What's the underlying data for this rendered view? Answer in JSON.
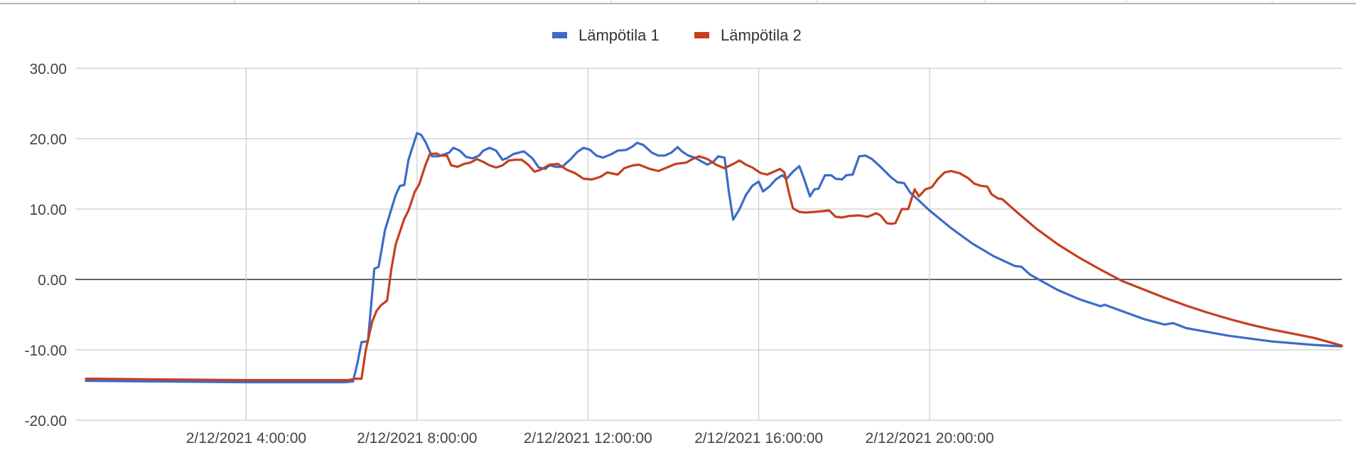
{
  "chart_data": {
    "type": "line",
    "title": "",
    "xlabel": "",
    "ylabel": "",
    "ylim": [
      -20,
      30
    ],
    "y_ticks": [
      "30.00",
      "20.00",
      "10.00",
      "0.00",
      "-10.00",
      "-20.00"
    ],
    "y_tick_values": [
      30,
      20,
      10,
      0,
      -10,
      -20
    ],
    "x_range_hours": [
      0.25,
      23.5
    ],
    "x_ticks": [
      "2/12/2021 4:00:00",
      "2/12/2021 8:00:00",
      "2/12/2021 12:00:00",
      "2/12/2021 16:00:00",
      "2/12/2021 20:00:00"
    ],
    "x_tick_hours": [
      4,
      8,
      12,
      16,
      20
    ],
    "grid": true,
    "legend_position": "top",
    "series": [
      {
        "name": "Lämpötila 1",
        "color": "#3c6bc9",
        "points": [
          [
            0.25,
            -14.4
          ],
          [
            2,
            -14.5
          ],
          [
            4,
            -14.6
          ],
          [
            6.3,
            -14.6
          ],
          [
            6.5,
            -14.5
          ],
          [
            6.6,
            -12
          ],
          [
            6.7,
            -8.9
          ],
          [
            6.85,
            -8.8
          ],
          [
            6.95,
            -2
          ],
          [
            7.0,
            1.5
          ],
          [
            7.1,
            1.8
          ],
          [
            7.25,
            7
          ],
          [
            7.4,
            10
          ],
          [
            7.5,
            12
          ],
          [
            7.6,
            13.3
          ],
          [
            7.7,
            13.4
          ],
          [
            7.8,
            17
          ],
          [
            8.0,
            20.8
          ],
          [
            8.1,
            20.5
          ],
          [
            8.2,
            19.5
          ],
          [
            8.35,
            17.5
          ],
          [
            8.5,
            17.5
          ],
          [
            8.75,
            18
          ],
          [
            8.85,
            18.7
          ],
          [
            9.0,
            18.3
          ],
          [
            9.15,
            17.4
          ],
          [
            9.3,
            17.2
          ],
          [
            9.45,
            17.6
          ],
          [
            9.55,
            18.3
          ],
          [
            9.7,
            18.7
          ],
          [
            9.85,
            18.3
          ],
          [
            10.0,
            17
          ],
          [
            10.1,
            17.2
          ],
          [
            10.25,
            17.8
          ],
          [
            10.5,
            18.2
          ],
          [
            10.7,
            17.2
          ],
          [
            10.85,
            15.9
          ],
          [
            11.0,
            15.7
          ],
          [
            11.1,
            16.2
          ],
          [
            11.25,
            16
          ],
          [
            11.4,
            16
          ],
          [
            11.6,
            17.1
          ],
          [
            11.75,
            18.1
          ],
          [
            11.9,
            18.7
          ],
          [
            12.05,
            18.4
          ],
          [
            12.2,
            17.6
          ],
          [
            12.35,
            17.3
          ],
          [
            12.55,
            17.8
          ],
          [
            12.7,
            18.3
          ],
          [
            12.9,
            18.4
          ],
          [
            13.05,
            18.9
          ],
          [
            13.15,
            19.4
          ],
          [
            13.3,
            19.1
          ],
          [
            13.5,
            18
          ],
          [
            13.65,
            17.6
          ],
          [
            13.8,
            17.6
          ],
          [
            13.95,
            18
          ],
          [
            14.1,
            18.8
          ],
          [
            14.2,
            18.2
          ],
          [
            14.35,
            17.6
          ],
          [
            14.5,
            17.3
          ],
          [
            14.65,
            16.8
          ],
          [
            14.8,
            16.3
          ],
          [
            14.95,
            16.8
          ],
          [
            15.05,
            17.5
          ],
          [
            15.2,
            17.3
          ],
          [
            15.3,
            12.5
          ],
          [
            15.4,
            8.5
          ],
          [
            15.55,
            10
          ],
          [
            15.7,
            12
          ],
          [
            15.85,
            13.3
          ],
          [
            16.0,
            13.9
          ],
          [
            16.1,
            12.5
          ],
          [
            16.25,
            13.2
          ],
          [
            16.4,
            14.2
          ],
          [
            16.55,
            14.8
          ],
          [
            16.65,
            14.3
          ],
          [
            16.8,
            15.3
          ],
          [
            16.95,
            16.1
          ],
          [
            17.05,
            14.5
          ],
          [
            17.2,
            11.8
          ],
          [
            17.3,
            12.8
          ],
          [
            17.4,
            12.9
          ],
          [
            17.55,
            14.8
          ],
          [
            17.7,
            14.8
          ],
          [
            17.8,
            14.3
          ],
          [
            17.95,
            14.2
          ],
          [
            18.05,
            14.8
          ],
          [
            18.2,
            14.9
          ],
          [
            18.35,
            17.5
          ],
          [
            18.5,
            17.6
          ],
          [
            18.65,
            17.1
          ],
          [
            18.85,
            16
          ],
          [
            19.1,
            14.5
          ],
          [
            19.25,
            13.8
          ],
          [
            19.4,
            13.7
          ],
          [
            19.55,
            12.3
          ],
          [
            19.75,
            11.2
          ],
          [
            20.0,
            9.8
          ],
          [
            20.5,
            7.3
          ],
          [
            21.0,
            5.1
          ],
          [
            21.5,
            3.3
          ],
          [
            22.0,
            1.9
          ],
          [
            22.15,
            1.8
          ],
          [
            22.35,
            0.7
          ],
          [
            22.7,
            -0.5
          ],
          [
            23.0,
            -1.5
          ],
          [
            23.5,
            -2.8
          ],
          [
            24.0,
            -3.8
          ],
          [
            24.1,
            -3.6
          ],
          [
            25.0,
            -5.6
          ],
          [
            25.5,
            -6.4
          ],
          [
            25.7,
            -6.2
          ],
          [
            26.0,
            -6.9
          ],
          [
            27.0,
            -8
          ],
          [
            28.0,
            -8.8
          ],
          [
            29.0,
            -9.3
          ],
          [
            29.65,
            -9.5
          ]
        ]
      },
      {
        "name": "Lämpötila 2",
        "color": "#c53f1e",
        "points": [
          [
            0.25,
            -14.1
          ],
          [
            2,
            -14.2
          ],
          [
            4,
            -14.3
          ],
          [
            6.4,
            -14.3
          ],
          [
            6.55,
            -14.1
          ],
          [
            6.7,
            -14.1
          ],
          [
            6.8,
            -10
          ],
          [
            6.95,
            -6
          ],
          [
            7.05,
            -4.5
          ],
          [
            7.15,
            -3.7
          ],
          [
            7.3,
            -3
          ],
          [
            7.4,
            1.5
          ],
          [
            7.5,
            5
          ],
          [
            7.7,
            8.6
          ],
          [
            7.8,
            9.8
          ],
          [
            7.95,
            12.5
          ],
          [
            8.05,
            13.5
          ],
          [
            8.2,
            16.3
          ],
          [
            8.3,
            17.8
          ],
          [
            8.45,
            17.9
          ],
          [
            8.55,
            17.6
          ],
          [
            8.7,
            17.6
          ],
          [
            8.8,
            16.2
          ],
          [
            8.95,
            16
          ],
          [
            9.1,
            16.4
          ],
          [
            9.25,
            16.6
          ],
          [
            9.4,
            17.1
          ],
          [
            9.55,
            16.7
          ],
          [
            9.7,
            16.2
          ],
          [
            9.85,
            15.9
          ],
          [
            10.0,
            16.2
          ],
          [
            10.15,
            16.9
          ],
          [
            10.3,
            17
          ],
          [
            10.45,
            17
          ],
          [
            10.6,
            16.3
          ],
          [
            10.75,
            15.3
          ],
          [
            10.9,
            15.6
          ],
          [
            11.1,
            16.3
          ],
          [
            11.3,
            16.4
          ],
          [
            11.5,
            15.6
          ],
          [
            11.7,
            15.1
          ],
          [
            11.9,
            14.3
          ],
          [
            12.1,
            14.2
          ],
          [
            12.3,
            14.6
          ],
          [
            12.45,
            15.2
          ],
          [
            12.7,
            14.9
          ],
          [
            12.85,
            15.8
          ],
          [
            13.05,
            16.2
          ],
          [
            13.2,
            16.3
          ],
          [
            13.45,
            15.7
          ],
          [
            13.65,
            15.4
          ],
          [
            13.85,
            15.9
          ],
          [
            14.05,
            16.4
          ],
          [
            14.3,
            16.6
          ],
          [
            14.45,
            17.1
          ],
          [
            14.6,
            17.5
          ],
          [
            14.8,
            17.1
          ],
          [
            15.0,
            16.3
          ],
          [
            15.2,
            15.8
          ],
          [
            15.4,
            16.4
          ],
          [
            15.55,
            16.9
          ],
          [
            15.7,
            16.3
          ],
          [
            15.85,
            15.9
          ],
          [
            16.05,
            15.1
          ],
          [
            16.2,
            14.9
          ],
          [
            16.35,
            15.3
          ],
          [
            16.5,
            15.7
          ],
          [
            16.6,
            15.2
          ],
          [
            16.7,
            12.5
          ],
          [
            16.8,
            10.1
          ],
          [
            16.95,
            9.6
          ],
          [
            17.1,
            9.5
          ],
          [
            17.3,
            9.6
          ],
          [
            17.5,
            9.7
          ],
          [
            17.65,
            9.8
          ],
          [
            17.8,
            8.9
          ],
          [
            17.95,
            8.8
          ],
          [
            18.1,
            9
          ],
          [
            18.35,
            9.1
          ],
          [
            18.55,
            8.9
          ],
          [
            18.75,
            9.4
          ],
          [
            18.85,
            9.1
          ],
          [
            19.0,
            8
          ],
          [
            19.1,
            7.9
          ],
          [
            19.2,
            8
          ],
          [
            19.35,
            10
          ],
          [
            19.5,
            10
          ],
          [
            19.65,
            12.8
          ],
          [
            19.75,
            11.8
          ],
          [
            19.9,
            12.8
          ],
          [
            20.05,
            13.1
          ],
          [
            20.2,
            14.3
          ],
          [
            20.35,
            15.2
          ],
          [
            20.5,
            15.4
          ],
          [
            20.7,
            15.1
          ],
          [
            20.9,
            14.4
          ],
          [
            21.05,
            13.6
          ],
          [
            21.2,
            13.3
          ],
          [
            21.35,
            13.2
          ],
          [
            21.45,
            12.1
          ],
          [
            21.6,
            11.5
          ],
          [
            21.7,
            11.4
          ],
          [
            22.0,
            9.8
          ],
          [
            22.5,
            7.2
          ],
          [
            23.0,
            5
          ],
          [
            23.5,
            3.1
          ],
          [
            24.0,
            1.4
          ],
          [
            24.5,
            -0.2
          ],
          [
            25.0,
            -1.4
          ],
          [
            25.5,
            -2.6
          ],
          [
            26.0,
            -3.7
          ],
          [
            26.5,
            -4.7
          ],
          [
            27.0,
            -5.6
          ],
          [
            27.5,
            -6.4
          ],
          [
            28.0,
            -7.1
          ],
          [
            28.5,
            -7.7
          ],
          [
            29.0,
            -8.3
          ],
          [
            29.65,
            -9.4
          ]
        ]
      }
    ]
  }
}
